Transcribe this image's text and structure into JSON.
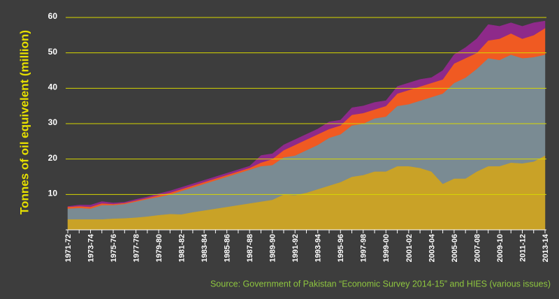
{
  "chart_data": {
    "type": "stacked_area",
    "y_label": "Tonnes of oil equivelent (million)",
    "source": "Source: Government of Pakistan “Economic Survey 2014-15” and HIES (various issues)",
    "categories": [
      "1971-72",
      null,
      "1973-74",
      null,
      "1975-76",
      null,
      "1977-78",
      null,
      "1979-80",
      null,
      "1981-82",
      null,
      "1983-84",
      null,
      "1985-86",
      null,
      "1987-88",
      null,
      "1989-90",
      null,
      "1991-92",
      null,
      "1993-94",
      null,
      "1995-96",
      null,
      "1997-98",
      null,
      "1999-00",
      null,
      "2001-02",
      null,
      "2003-04",
      null,
      "2005-06",
      null,
      "2007-08",
      null,
      "2009-10",
      null,
      "2011-12",
      null,
      "2013-14"
    ],
    "ylim": [
      0,
      60
    ],
    "yticks": [
      10,
      20,
      30,
      40,
      50,
      60
    ],
    "grid": true,
    "series": [
      {
        "color": "#c9a227",
        "values": [
          3,
          3,
          3,
          3,
          3.2,
          3.3,
          3.5,
          3.8,
          4.2,
          4.5,
          4.4,
          5,
          5.5,
          6,
          6.5,
          7,
          7.5,
          8,
          8.5,
          10,
          9.8,
          10.5,
          11.5,
          12.5,
          13.5,
          15,
          15.5,
          16.5,
          16.5,
          18,
          18,
          17.5,
          16.5,
          13,
          14.5,
          14.5,
          16.5,
          18,
          18,
          19,
          18.8,
          19.3,
          21
        ]
      },
      {
        "color": "#7a8b93",
        "values": [
          3,
          3.2,
          3,
          4,
          3.8,
          4,
          4.5,
          4.9,
          5.1,
          5.5,
          6.6,
          7,
          7.5,
          8,
          8.5,
          9,
          9.5,
          10,
          9.8,
          10.5,
          11.2,
          12,
          12.5,
          13.5,
          13.5,
          14.5,
          14.5,
          15,
          15.5,
          17,
          17.5,
          19,
          21,
          25.5,
          27,
          28.5,
          29,
          30.5,
          30,
          30.5,
          29.7,
          29.5,
          28.5
        ]
      },
      {
        "color": "#f05a22",
        "values": [
          0.5,
          0.5,
          0.5,
          0.5,
          0.3,
          0.3,
          0.3,
          0.3,
          0.5,
          0.5,
          0.5,
          0.5,
          0.5,
          0.5,
          0.5,
          0.5,
          0.5,
          1,
          1.7,
          2,
          3,
          3,
          3,
          2.5,
          2.5,
          3,
          3,
          2.5,
          3,
          3.5,
          4,
          4,
          4,
          4,
          5.5,
          5.5,
          4.5,
          5,
          6,
          6,
          5.5,
          6.2,
          7.5
        ]
      },
      {
        "color": "#8e2a8a",
        "values": [
          0.1,
          0.3,
          0.5,
          0.5,
          0.3,
          0.2,
          0.3,
          0.3,
          0.4,
          0.5,
          0.5,
          0.5,
          0.5,
          0.5,
          0.5,
          0.5,
          0.5,
          2,
          1.5,
          1.5,
          1.5,
          1.5,
          1.5,
          2,
          1.5,
          2,
          2,
          2,
          1.5,
          2,
          2,
          2,
          1.5,
          2.5,
          2.5,
          3,
          4,
          4.5,
          3.5,
          3,
          3.5,
          3.5,
          2
        ]
      }
    ]
  }
}
